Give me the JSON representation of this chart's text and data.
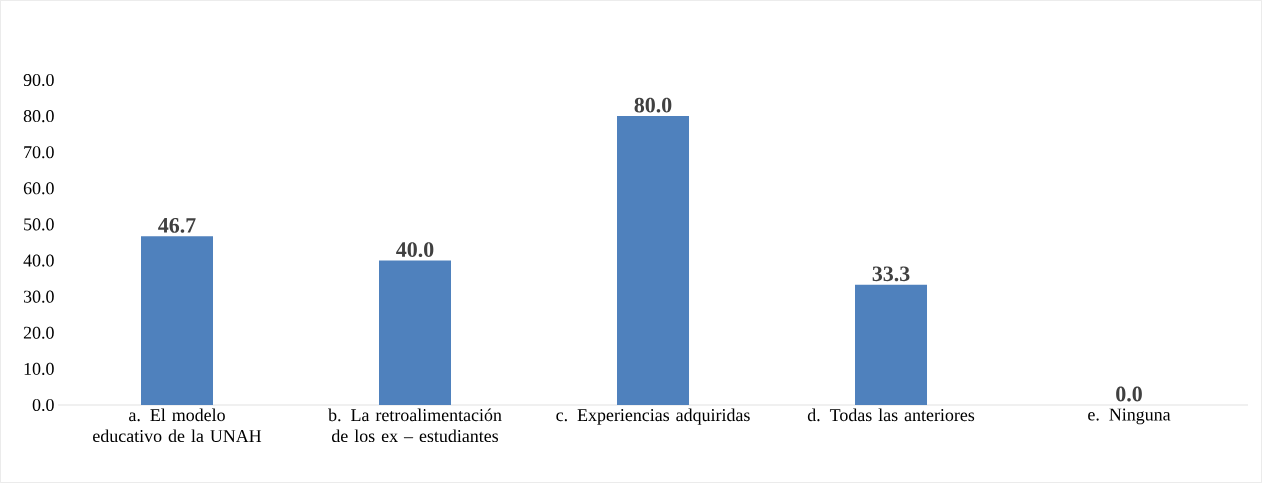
{
  "chart_data": {
    "type": "bar",
    "categories": [
      "a. El modelo educativo de la UNAH",
      "b. La retroalimentación de los ex – estudiantes",
      "c. Experiencias adquiridas",
      "d. Todas las anteriores",
      "e. Ninguna"
    ],
    "values": [
      46.7,
      40.0,
      80.0,
      33.3,
      0.0
    ],
    "value_labels": [
      "46.7",
      "40.0",
      "80.0",
      "33.3",
      "0.0"
    ],
    "color": "#4f81bd",
    "ylim": [
      0,
      90
    ],
    "yticks": [
      {
        "value": 0,
        "label": "0.0"
      },
      {
        "value": 10,
        "label": "10.0"
      },
      {
        "value": 20,
        "label": "20.0"
      },
      {
        "value": 30,
        "label": "30.0"
      },
      {
        "value": 40,
        "label": "40.0"
      },
      {
        "value": 50,
        "label": "50.0"
      },
      {
        "value": 60,
        "label": "60.0"
      },
      {
        "value": 70,
        "label": "70.0"
      },
      {
        "value": 80,
        "label": "80.0"
      },
      {
        "value": 90,
        "label": "90.0"
      }
    ]
  }
}
